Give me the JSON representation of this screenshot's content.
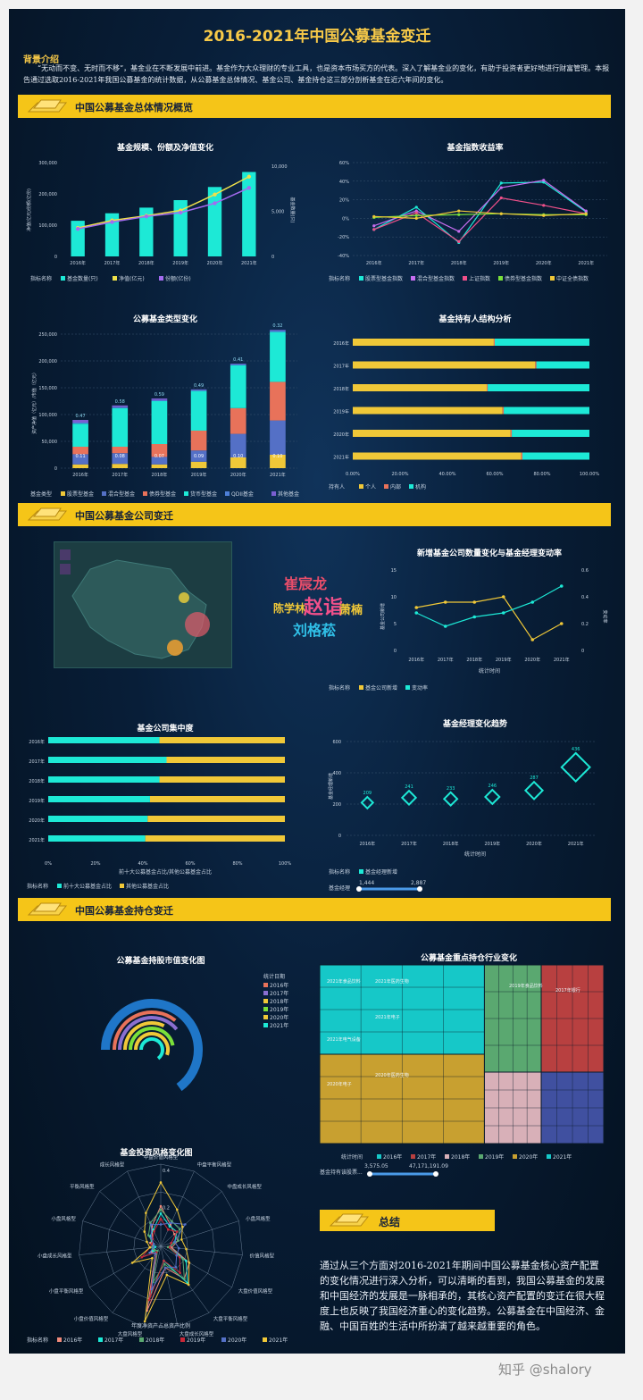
{
  "title": "2016-2021年中国公募基金变迁",
  "intro": {
    "heading": "背景介绍",
    "text": "“无动而不变、无时而不移”，基金业在不断发展中前进。基金作为大众理财的专业工具，也是资本市场买方的代表。深入了解基金业的变化，有助于投资者更好地进行财富管理。本报告通过选取2016-2021年我国公募基金的统计数据，从公募基金总体情况、基金公司、基金持仓这三部分剖析基金在近六年间的变化。"
  },
  "sections": {
    "s1": "中国公募基金总体情况概览",
    "s2": "中国公募基金公司变迁",
    "s3": "中国公募基金持仓变迁",
    "summary": "总结"
  },
  "summary_text": "通过从三个方面对2016-2021年期间中国公募基金核心资产配置的变化情况进行深入分析，可以清晰的看到，我国公募基金的发展和中国经济的发展是一脉相承的，其核心资产配置的变迁在很大程度上也反映了我国经济重心的变化趋势。公募基金在中国经济、金融、中国百姓的生活中所扮演了越来越重要的角色。",
  "watermark": "知乎 @shalory",
  "colors": {
    "gold": "#f5c518",
    "cyan": "#1de9d6",
    "purple": "#a46bf0",
    "yellow": "#f0e14a"
  },
  "chart_data": [
    {
      "id": "scale",
      "type": "bar",
      "title": "基金规模、份额及净值变化",
      "categories": [
        "2016年",
        "2017年",
        "2018年",
        "2019年",
        "2020年",
        "2021年"
      ],
      "legend_title": "指标名称",
      "series": [
        {
          "name": "基金数量(只)",
          "values": [
            3800,
            4600,
            5200,
            6000,
            7400,
            9000
          ],
          "axis": "right"
        },
        {
          "name": "净值(亿元)",
          "values": [
            91000,
            115000,
            130000,
            147000,
            198000,
            255000
          ],
          "axis": "left"
        },
        {
          "name": "份额(亿份)",
          "values": [
            88000,
            110000,
            128000,
            140000,
            170000,
            219000
          ],
          "axis": "left"
        }
      ],
      "yticks_left": [
        "300,000",
        "200,000",
        "100,000",
        "0"
      ],
      "yticks_right": [
        "10,000",
        "5,000",
        "0"
      ],
      "ylabel_left": "净值(亿元)份额(亿份)",
      "ylabel_right": "基金数量(只)"
    },
    {
      "id": "index",
      "type": "line",
      "title": "基金指数收益率",
      "categories": [
        "2016年",
        "2017年",
        "2018年",
        "2019年",
        "2020年",
        "2021年"
      ],
      "legend_title": "指标名称",
      "yticks": [
        "60%",
        "40%",
        "20%",
        "0%",
        "-20%",
        "-40%"
      ],
      "ylim": [
        -40,
        60
      ],
      "series": [
        {
          "name": "股票型基金指数",
          "values": [
            -12,
            12,
            -26,
            38,
            39,
            7
          ]
        },
        {
          "name": "混合型基金指数",
          "values": [
            -8,
            8,
            -14,
            33,
            41,
            8
          ]
        },
        {
          "name": "上证指数",
          "values": [
            -12,
            6,
            -25,
            22,
            14,
            5
          ]
        },
        {
          "name": "债券型基金指数",
          "values": [
            1,
            3,
            4,
            5,
            4,
            4
          ]
        },
        {
          "name": "中证全债指数",
          "values": [
            2,
            0,
            8,
            5,
            3,
            5
          ]
        }
      ]
    },
    {
      "id": "types",
      "type": "bar",
      "title": "公募基金类型变化",
      "categories": [
        "2016年",
        "2017年",
        "2018年",
        "2019年",
        "2020年",
        "2021年"
      ],
      "legend_title": "基金类型",
      "ylabel": "资产净值（亿元）/市值（亿元）",
      "yticks": [
        "250,000",
        "200,000",
        "150,000",
        "100,000",
        "50,000",
        "0"
      ],
      "ylim": [
        0,
        250000
      ],
      "series": [
        {
          "name": "股票型基金",
          "values": [
            7000,
            8000,
            7000,
            12000,
            20000,
            25000
          ]
        },
        {
          "name": "混合型基金",
          "values": [
            19000,
            20000,
            14000,
            21000,
            44000,
            64000
          ]
        },
        {
          "name": "债券型基金",
          "values": [
            14000,
            12000,
            24000,
            37000,
            48000,
            72000
          ]
        },
        {
          "name": "货币型基金",
          "values": [
            43000,
            72000,
            80000,
            74000,
            80000,
            93000
          ]
        },
        {
          "name": "QDII基金",
          "values": [
            2000,
            2000,
            2000,
            2000,
            2000,
            3000
          ]
        },
        {
          "name": "其他基金",
          "values": [
            5000,
            3000,
            3000,
            1000,
            1000,
            1000
          ]
        }
      ],
      "top_labels": [
        "0.47",
        "0.58",
        "0.59",
        "0.49",
        "0.41",
        "0.32"
      ],
      "low_labels": [
        "0.11",
        "0.08",
        "0.07",
        "0.09",
        "0.10",
        "0.10"
      ]
    },
    {
      "id": "holders",
      "type": "bar",
      "title": "基金持有人结构分析",
      "categories": [
        "2016年",
        "2017年",
        "2018年",
        "2019年",
        "2020年",
        "2021年"
      ],
      "legend_title": "持有人",
      "xticks": [
        "0.00%",
        "20.00%",
        "40.00%",
        "60.00%",
        "80.00%",
        "100.00%"
      ],
      "series": [
        {
          "name": "个人",
          "values": [
            59.6,
            77.1,
            56.6,
            63.3,
            66.7,
            71.2
          ]
        },
        {
          "name": "内部",
          "values": [
            0.4,
            0.5,
            0.4,
            0.5,
            0.5,
            0.5
          ]
        },
        {
          "name": "机构",
          "values": [
            40.0,
            22.4,
            43.0,
            36.2,
            32.8,
            28.3
          ]
        }
      ]
    },
    {
      "id": "newcos",
      "type": "line",
      "title": "新增基金公司数量变化与基金经理变动率",
      "categories": [
        "2016年",
        "2017年",
        "2018年",
        "2019年",
        "2020年",
        "2021年"
      ],
      "legend_title": "指标名称",
      "xlabel": "统计时间",
      "ylabel_left": "基金公司新增",
      "ylabel_right": "变动率",
      "yticks_left": [
        "15",
        "10",
        "5",
        "0"
      ],
      "yticks_right": [
        "0.6",
        "0.4",
        "0.2",
        "0"
      ],
      "series": [
        {
          "name": "基金公司新增",
          "values": [
            8,
            9,
            9,
            10,
            2,
            5
          ]
        },
        {
          "name": "变动率",
          "values": [
            0.28,
            0.18,
            0.25,
            0.28,
            0.36,
            0.48
          ]
        }
      ]
    },
    {
      "id": "concentration",
      "type": "bar",
      "title": "基金公司集中度",
      "categories": [
        "2016年",
        "2017年",
        "2018年",
        "2019年",
        "2020年",
        "2021年"
      ],
      "legend_title": "指标名称",
      "xlabel": "前十大公募基金占比/其他公募基金占比",
      "xticks": [
        "0%",
        "20%",
        "40%",
        "60%",
        "80%",
        "100%"
      ],
      "series": [
        {
          "name": "前十大公募基金占比",
          "values": [
            47,
            50,
            47,
            43,
            42,
            41
          ]
        },
        {
          "name": "其他公募基金占比",
          "values": [
            53,
            50,
            53,
            57,
            58,
            59
          ]
        }
      ]
    },
    {
      "id": "managers",
      "type": "scatter",
      "title": "基金经理变化趋势",
      "categories": [
        "2016年",
        "2017年",
        "2018年",
        "2019年",
        "2020年",
        "2021年"
      ],
      "legend_title": "指标名称",
      "xlabel": "统计时间",
      "ylabel": "基金经理新增",
      "yticks": [
        "600",
        "400",
        "200",
        "0"
      ],
      "ylim": [
        0,
        600
      ],
      "series": [
        {
          "name": "基金经理新增",
          "values": [
            209,
            241,
            233,
            246,
            287,
            436
          ]
        }
      ],
      "slider": {
        "label": "基金经理",
        "min": "1,444",
        "max": "2,887"
      }
    },
    {
      "id": "radialbar",
      "type": "bar",
      "title": "公募基金持股市值变化图",
      "legend_title": "统计日期",
      "categories": [
        "2016年",
        "2017年",
        "2018年",
        "2019年",
        "2020年",
        "2021年"
      ],
      "values": [
        0.55,
        0.6,
        0.5,
        0.72,
        0.85,
        1.0
      ]
    },
    {
      "id": "treemap",
      "type": "heatmap",
      "title": "公募基金重点持仓行业变化",
      "legend_title": "统计时间",
      "categories": [
        "2016年",
        "2017年",
        "2018年",
        "2019年",
        "2020年",
        "2021年"
      ],
      "labels": [
        "2021年食品饮料",
        "2021年医药生物",
        "2021年电子",
        "2021年电气设备",
        "2020年电子",
        "2020年医药生物",
        "2019年食品饮料",
        "2017年银行"
      ],
      "slider": {
        "label": "基金持有该股票...",
        "min": "3,575.05",
        "max": "47,171,191.09"
      }
    },
    {
      "id": "style",
      "type": "line",
      "title": "基金投资风格变化图",
      "legend_title": "指标名称",
      "xlabel": "年度净资产占总资产比例",
      "axes": [
        "中盘价值风格型",
        "中盘平衡风格型",
        "中盘成长风格型",
        "小盘风格型",
        "价值风格型",
        "大盘价值风格型",
        "大盘平衡风格型",
        "大盘成长风格型",
        "大盘风格型",
        "小盘价值风格型",
        "小盘平衡风格型",
        "小盘成长风格型",
        "小盘风格型",
        "平衡风格型",
        "成长风格型"
      ],
      "rticks": [
        "0.4",
        "0.2"
      ],
      "series": [
        {
          "name": "2016年",
          "values": [
            0.22,
            0.13,
            0.1,
            0.1,
            0.06,
            0.18,
            0.22,
            0.12,
            0.36,
            0.05,
            0.06,
            0.04,
            0.06,
            0.06,
            0.12
          ]
        },
        {
          "name": "2017年",
          "values": [
            0.18,
            0.12,
            0.12,
            0.08,
            0.05,
            0.16,
            0.25,
            0.08,
            0.28,
            0.04,
            0.05,
            0.03,
            0.05,
            0.08,
            0.1
          ]
        },
        {
          "name": "2018年",
          "values": [
            0.2,
            0.15,
            0.14,
            0.1,
            0.04,
            0.14,
            0.22,
            0.1,
            0.2,
            0.03,
            0.04,
            0.05,
            0.04,
            0.09,
            0.14
          ]
        },
        {
          "name": "2019年",
          "values": [
            0.15,
            0.1,
            0.12,
            0.06,
            0.05,
            0.12,
            0.18,
            0.08,
            0.3,
            0.04,
            0.12,
            0.06,
            0.05,
            0.06,
            0.09
          ]
        },
        {
          "name": "2020年",
          "values": [
            0.12,
            0.14,
            0.18,
            0.08,
            0.1,
            0.1,
            0.14,
            0.12,
            0.24,
            0.05,
            0.07,
            0.04,
            0.04,
            0.07,
            0.13
          ]
        },
        {
          "name": "2021年",
          "values": [
            0.35,
            0.22,
            0.16,
            0.12,
            0.14,
            0.18,
            0.26,
            0.16,
            0.42,
            0.08,
            0.18,
            0.06,
            0.08,
            0.12,
            0.2
          ]
        }
      ]
    }
  ]
}
